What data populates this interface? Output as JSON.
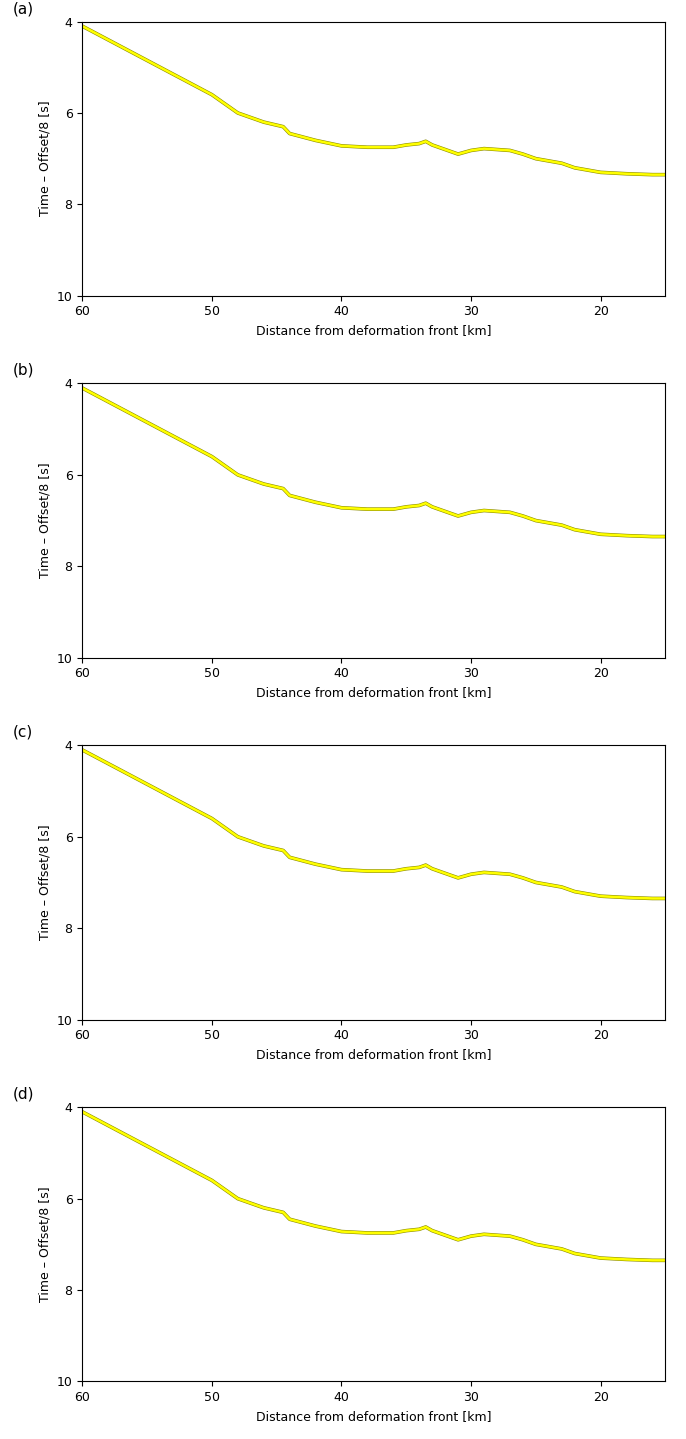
{
  "chart_data": [
    {
      "type": "line",
      "title": "(a)",
      "x_label": "Distance from deformation front [km]",
      "y_label": "Time – Offset/8 [s]",
      "x": [
        60,
        58,
        56,
        54,
        52,
        50,
        48,
        46,
        44.5,
        44,
        42,
        40,
        38,
        36,
        35,
        34,
        33.5,
        33,
        32,
        31,
        30,
        29,
        28,
        27,
        26,
        25,
        24,
        23,
        22,
        21,
        20,
        18,
        16,
        15
      ],
      "values": [
        4.1,
        4.4,
        4.7,
        5.0,
        5.3,
        5.6,
        6.0,
        6.2,
        6.3,
        6.45,
        6.6,
        6.72,
        6.75,
        6.75,
        6.7,
        6.67,
        6.62,
        6.7,
        6.8,
        6.9,
        6.82,
        6.78,
        6.8,
        6.82,
        6.9,
        7.0,
        7.05,
        7.1,
        7.2,
        7.25,
        7.3,
        7.33,
        7.35,
        7.35
      ],
      "color": "#ffff00",
      "xlim": [
        60,
        15
      ],
      "xticks": [
        60,
        50,
        40,
        30,
        20
      ],
      "ylim": [
        10,
        4
      ],
      "yticks": [
        4,
        6,
        8,
        10
      ]
    },
    {
      "type": "line",
      "title": "(b)",
      "x_label": "Distance from deformation front [km]",
      "y_label": "Time – Offset/8 [s]",
      "x": [
        60,
        58,
        56,
        54,
        52,
        50,
        48,
        46,
        44.5,
        44,
        42,
        40,
        38,
        36,
        35,
        34,
        33.5,
        33,
        32,
        31,
        30,
        29,
        28,
        27,
        26,
        25,
        24,
        23,
        22,
        21,
        20,
        18,
        16,
        15
      ],
      "values": [
        4.1,
        4.4,
        4.7,
        5.0,
        5.3,
        5.6,
        6.0,
        6.2,
        6.3,
        6.45,
        6.6,
        6.72,
        6.75,
        6.75,
        6.7,
        6.67,
        6.62,
        6.7,
        6.8,
        6.9,
        6.82,
        6.78,
        6.8,
        6.82,
        6.9,
        7.0,
        7.05,
        7.1,
        7.2,
        7.25,
        7.3,
        7.33,
        7.35,
        7.35
      ],
      "color": "#ffff00",
      "xlim": [
        60,
        15
      ],
      "xticks": [
        60,
        50,
        40,
        30,
        20
      ],
      "ylim": [
        10,
        4
      ],
      "yticks": [
        4,
        6,
        8,
        10
      ]
    },
    {
      "type": "line",
      "title": "(c)",
      "x_label": "Distance from deformation front [km]",
      "y_label": "Time – Offset/8 [s]",
      "x": [
        60,
        58,
        56,
        54,
        52,
        50,
        48,
        46,
        44.5,
        44,
        42,
        40,
        38,
        36,
        35,
        34,
        33.5,
        33,
        32,
        31,
        30,
        29,
        28,
        27,
        26,
        25,
        24,
        23,
        22,
        21,
        20,
        18,
        16,
        15
      ],
      "values": [
        4.1,
        4.4,
        4.7,
        5.0,
        5.3,
        5.6,
        6.0,
        6.2,
        6.3,
        6.45,
        6.6,
        6.72,
        6.75,
        6.75,
        6.7,
        6.67,
        6.62,
        6.7,
        6.8,
        6.9,
        6.82,
        6.78,
        6.8,
        6.82,
        6.9,
        7.0,
        7.05,
        7.1,
        7.2,
        7.25,
        7.3,
        7.33,
        7.35,
        7.35
      ],
      "color": "#ffff00",
      "xlim": [
        60,
        15
      ],
      "xticks": [
        60,
        50,
        40,
        30,
        20
      ],
      "ylim": [
        10,
        4
      ],
      "yticks": [
        4,
        6,
        8,
        10
      ]
    },
    {
      "type": "line",
      "title": "(d)",
      "x_label": "Distance from deformation front [km]",
      "y_label": "Time – Offset/8 [s]",
      "x": [
        60,
        58,
        56,
        54,
        52,
        50,
        48,
        46,
        44.5,
        44,
        42,
        40,
        38,
        36,
        35,
        34,
        33.5,
        33,
        32,
        31,
        30,
        29,
        28,
        27,
        26,
        25,
        24,
        23,
        22,
        21,
        20,
        18,
        16,
        15
      ],
      "values": [
        4.1,
        4.4,
        4.7,
        5.0,
        5.3,
        5.6,
        6.0,
        6.2,
        6.3,
        6.45,
        6.6,
        6.72,
        6.75,
        6.75,
        6.7,
        6.67,
        6.62,
        6.7,
        6.8,
        6.9,
        6.82,
        6.78,
        6.8,
        6.82,
        6.9,
        7.0,
        7.05,
        7.1,
        7.2,
        7.25,
        7.3,
        7.33,
        7.35,
        7.35
      ],
      "color": "#ffff00",
      "xlim": [
        60,
        15
      ],
      "xticks": [
        60,
        50,
        40,
        30,
        20
      ],
      "ylim": [
        10,
        4
      ],
      "yticks": [
        4,
        6,
        8,
        10
      ]
    }
  ]
}
